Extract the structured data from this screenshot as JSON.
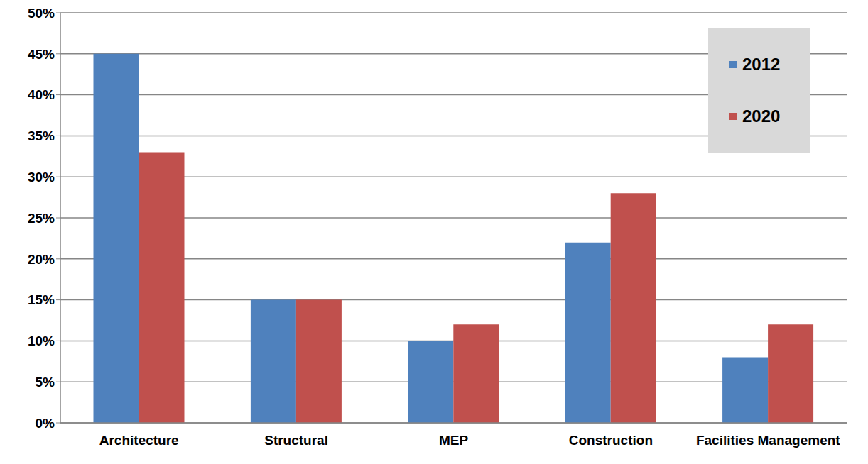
{
  "chart_data": {
    "type": "bar",
    "categories": [
      "Architecture",
      "Structural",
      "MEP",
      "Construction",
      "Facilities Management"
    ],
    "series": [
      {
        "name": "2012",
        "color": "#4f81bd",
        "values": [
          45,
          15,
          10,
          22,
          8
        ]
      },
      {
        "name": "2020",
        "color": "#c0504d",
        "values": [
          33,
          15,
          12,
          28,
          12
        ]
      }
    ],
    "ylim": [
      0,
      50
    ],
    "yticks": [
      {
        "value": 0,
        "label": "0%"
      },
      {
        "value": 5,
        "label": "5%"
      },
      {
        "value": 10,
        "label": "10%"
      },
      {
        "value": 15,
        "label": "15%"
      },
      {
        "value": 20,
        "label": "20%"
      },
      {
        "value": 25,
        "label": "25%"
      },
      {
        "value": 30,
        "label": "30%"
      },
      {
        "value": 35,
        "label": "35%"
      },
      {
        "value": 40,
        "label": "40%"
      },
      {
        "value": 45,
        "label": "45%"
      },
      {
        "value": 50,
        "label": "50%"
      }
    ],
    "grid": true,
    "legend": "upper right"
  }
}
